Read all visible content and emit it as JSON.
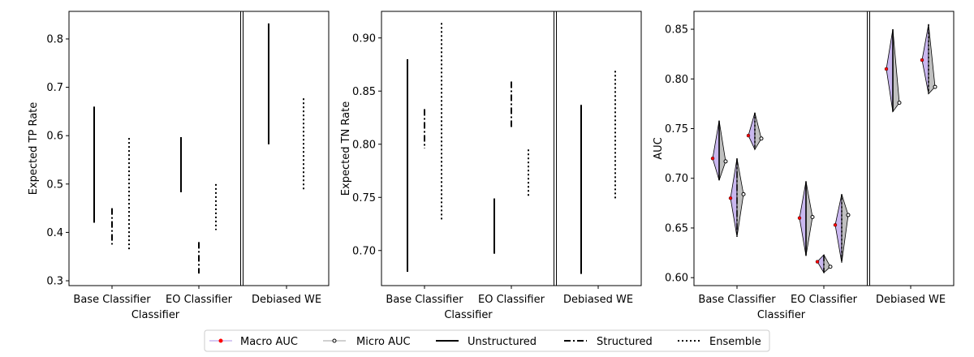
{
  "chart_data": [
    {
      "type": "range",
      "ylabel": "Expected TP Rate",
      "xlabel": "Classifier",
      "categories": [
        "Base Classifier",
        "EO Classifier",
        "Debiased WE"
      ],
      "ylim": [
        0.29,
        0.857
      ],
      "yticks": [
        "0.3",
        "0.4",
        "0.5",
        "0.6",
        "0.7",
        "0.8"
      ],
      "series": [
        {
          "name": "Unstructured",
          "style": "solid",
          "ranges": [
            [
              0.42,
              0.66
            ],
            [
              0.483,
              0.597
            ],
            [
              0.582,
              0.832
            ]
          ]
        },
        {
          "name": "Structured",
          "style": "dashdot",
          "ranges": [
            [
              0.375,
              0.45
            ],
            [
              0.315,
              0.38
            ],
            null
          ]
        },
        {
          "name": "Ensemble",
          "style": "dotted",
          "ranges": [
            [
              0.362,
              0.595
            ],
            [
              0.405,
              0.5
            ],
            [
              0.488,
              0.677
            ]
          ]
        }
      ]
    },
    {
      "type": "range",
      "ylabel": "Expected TN Rate",
      "xlabel": "Classifier",
      "categories": [
        "Base Classifier",
        "EO Classifier",
        "Debiased WE"
      ],
      "ylim": [
        0.667,
        0.925
      ],
      "yticks": [
        "0.70",
        "0.75",
        "0.80",
        "0.85",
        "0.90"
      ],
      "series": [
        {
          "name": "Unstructured",
          "style": "solid",
          "ranges": [
            [
              0.68,
              0.88
            ],
            [
              0.697,
              0.749
            ],
            [
              0.678,
              0.837
            ]
          ]
        },
        {
          "name": "Structured",
          "style": "dashdot",
          "ranges": [
            [
              0.796,
              0.833
            ],
            [
              0.815,
              0.859
            ],
            null
          ]
        },
        {
          "name": "Ensemble",
          "style": "dotted",
          "ranges": [
            [
              0.727,
              0.914
            ],
            [
              0.75,
              0.795
            ],
            [
              0.748,
              0.869
            ]
          ]
        }
      ]
    },
    {
      "type": "violin",
      "ylabel": "AUC",
      "xlabel": "Classifier",
      "categories": [
        "Base Classifier",
        "EO Classifier",
        "Debiased WE"
      ],
      "ylim": [
        0.592,
        0.868
      ],
      "yticks": [
        "0.60",
        "0.65",
        "0.70",
        "0.75",
        "0.80",
        "0.85"
      ],
      "series": [
        {
          "name": "Unstructured",
          "style": "solid",
          "ranges": [
            [
              0.698,
              0.758
            ],
            [
              0.622,
              0.697
            ],
            [
              0.767,
              0.85
            ]
          ],
          "macro": [
            0.72,
            0.66,
            0.81
          ],
          "micro": [
            0.717,
            0.661,
            0.776
          ]
        },
        {
          "name": "Structured",
          "style": "dashdot",
          "ranges": [
            [
              0.641,
              0.72
            ],
            [
              0.605,
              0.623
            ],
            null
          ],
          "macro": [
            0.68,
            0.616,
            null
          ],
          "micro": [
            0.684,
            0.611,
            null
          ]
        },
        {
          "name": "Ensemble",
          "style": "dotted",
          "ranges": [
            [
              0.729,
              0.766
            ],
            [
              0.615,
              0.684
            ],
            [
              0.785,
              0.855
            ]
          ],
          "macro": [
            0.743,
            0.653,
            0.819
          ],
          "micro": [
            0.74,
            0.663,
            0.792
          ]
        }
      ]
    }
  ],
  "legend": {
    "placement": "bottom-center",
    "items": [
      {
        "label": "Macro AUC",
        "kind": "marker",
        "marker_color": "#ff0000"
      },
      {
        "label": "Micro AUC",
        "kind": "marker",
        "marker_color": "#000000"
      },
      {
        "label": "Unstructured",
        "kind": "line",
        "style": "solid"
      },
      {
        "label": "Structured",
        "kind": "line",
        "style": "dashdot"
      },
      {
        "label": "Ensemble",
        "kind": "line",
        "style": "dotted"
      }
    ]
  },
  "colors": {
    "macro_fill": "#c9b7ef",
    "micro_fill": "#c0c0c0",
    "macro_marker": "#ff0000",
    "line": "#000000"
  }
}
